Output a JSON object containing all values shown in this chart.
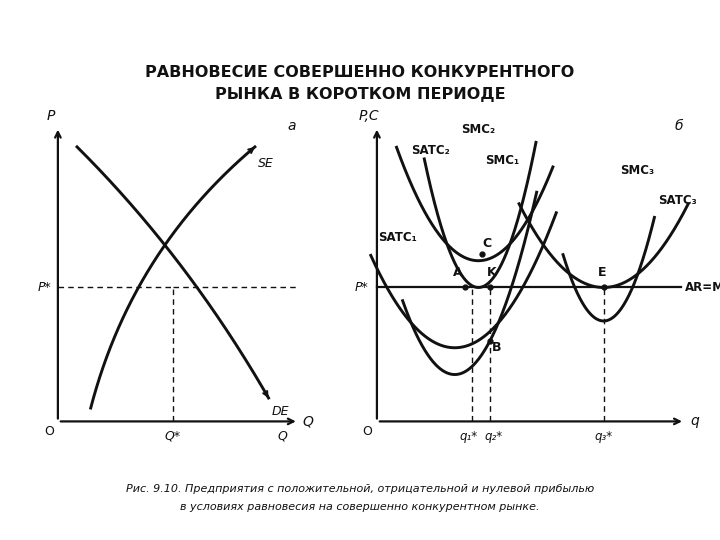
{
  "title_line1": "РАВНОВЕСИЕ СОВЕРШЕННО КОНКУРЕНТНОГО",
  "title_line2": "РЫНКА В КОРОТКОМ ПЕРИОДЕ",
  "caption_line1": "Рис. 9.10. Предприятия с положительной, отрицательной и нулевой прибылью",
  "caption_line2": "в условиях равновесия на совершенно конкурентном рынке.",
  "bg_color": "#ffffff",
  "line_color": "#111111",
  "panel_a_label": "а",
  "panel_b_label": "б",
  "left_ylabel": "P",
  "left_xlabel": "Q",
  "right_ylabel": "P,C",
  "right_xlabel": "q",
  "left_origin": "O",
  "right_origin": "O",
  "left_pstar": "P*",
  "right_pstar": "P*",
  "left_qstar": "Q*",
  "left_Q": "Q",
  "right_q1": "q₁*",
  "right_q2": "q₂*",
  "right_q3": "q₃*",
  "Se_label": "SЕ",
  "De_label": "DЕ",
  "SATC1_label": "SATC₁",
  "SATC2_label": "SATC₂",
  "SATC3_label": "SATC₃",
  "SMC1_label": "SMC₁",
  "SMC2_label": "SMC₂",
  "SMC3_label": "SMC₃",
  "AR_MR_label": "AR=MR",
  "point_A": "A",
  "point_B": "B",
  "point_C": "C",
  "point_K": "K",
  "point_E": "E"
}
